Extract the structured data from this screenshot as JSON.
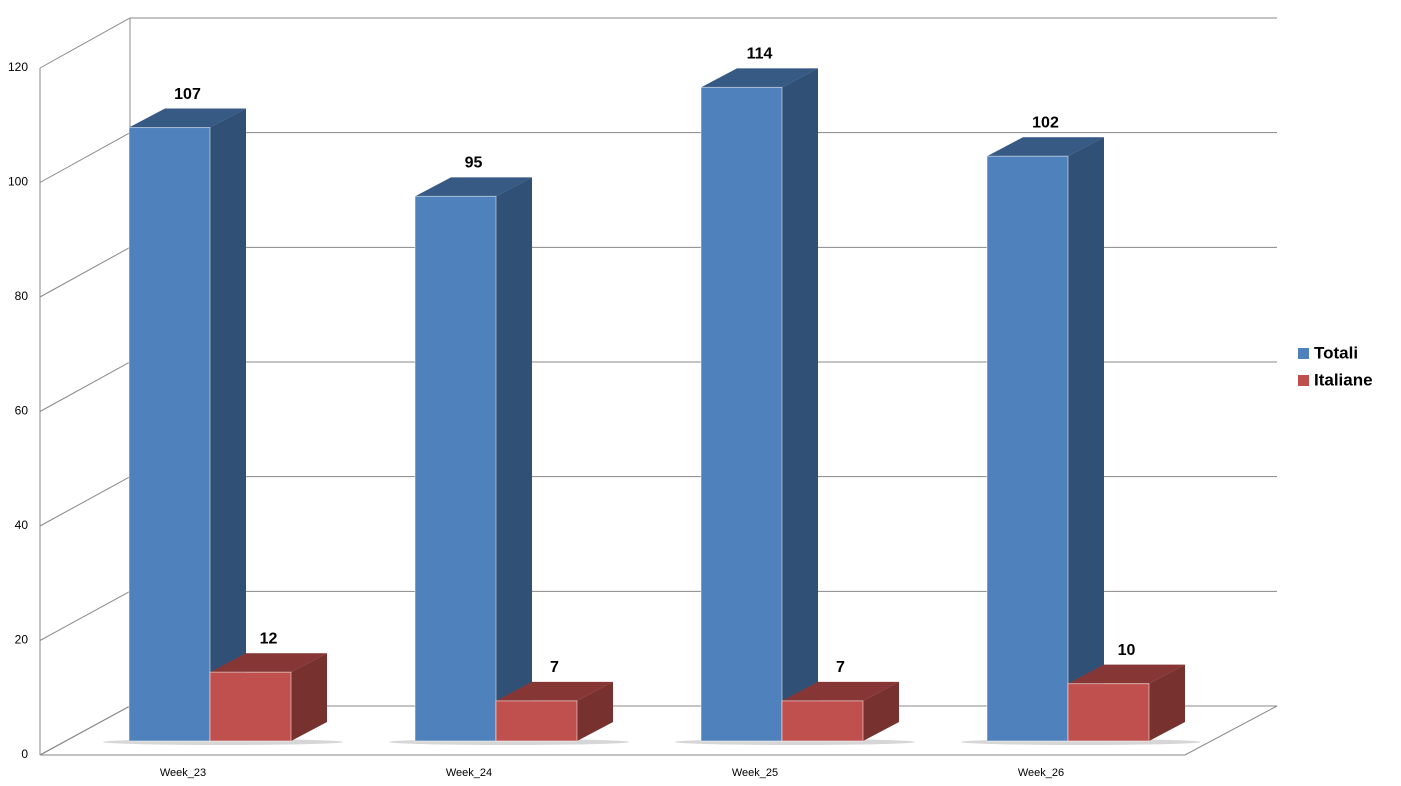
{
  "chart_data": {
    "type": "bar3d",
    "categories": [
      "Week_23",
      "Week_24",
      "Week_25",
      "Week_26"
    ],
    "series": [
      {
        "name": "Totali",
        "color": "#4f81bd",
        "values": [
          107,
          95,
          114,
          102
        ]
      },
      {
        "name": "Italiane",
        "color": "#c0504d",
        "values": [
          12,
          7,
          7,
          10
        ]
      }
    ],
    "ylim": [
      0,
      120
    ],
    "yticks": [
      0,
      20,
      40,
      60,
      80,
      100,
      120
    ],
    "grid": true,
    "legend": "right"
  }
}
